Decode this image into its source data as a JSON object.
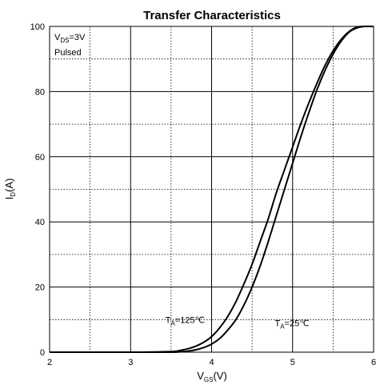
{
  "chart_data": {
    "type": "line",
    "title": "Transfer Characteristics",
    "xlabel": {
      "main": "V",
      "sub": "GS",
      "suffix": "(V)"
    },
    "ylabel": {
      "main": "I",
      "sub": "D",
      "suffix": "(A)"
    },
    "xlim": [
      2,
      6
    ],
    "ylim": [
      0,
      100
    ],
    "xticks": [
      2,
      3,
      4,
      5,
      6
    ],
    "yticks": [
      0,
      20,
      40,
      60,
      80,
      100
    ],
    "x_minor_step": 0.5,
    "y_minor_step": 10,
    "grid": true,
    "conditions": {
      "line1": {
        "main": "V",
        "sub": "DS",
        "suffix": "=3V"
      },
      "line2": "Pulsed"
    },
    "series": [
      {
        "name": {
          "main": "T",
          "sub": "A",
          "suffix": "=125℃"
        },
        "x": [
          2.0,
          3.0,
          3.5,
          3.6,
          3.7,
          3.8,
          3.9,
          4.0,
          4.1,
          4.2,
          4.3,
          4.4,
          4.5,
          4.6,
          4.7,
          4.8,
          4.9,
          5.0,
          5.1,
          5.2,
          5.3,
          5.4,
          5.5,
          5.6,
          5.7,
          5.8,
          5.9,
          6.0
        ],
        "y": [
          0,
          0,
          0.2,
          0.5,
          1.0,
          1.8,
          3.0,
          4.8,
          7.5,
          11,
          15.5,
          21,
          27,
          34,
          41,
          49,
          56,
          63,
          70,
          76.5,
          82.5,
          88,
          92.5,
          96,
          98.5,
          99.8,
          100,
          100
        ]
      },
      {
        "name": {
          "main": "T",
          "sub": "A",
          "suffix": "=25℃"
        },
        "x": [
          2.0,
          3.0,
          3.5,
          3.6,
          3.7,
          3.8,
          3.9,
          4.0,
          4.1,
          4.2,
          4.3,
          4.4,
          4.5,
          4.6,
          4.7,
          4.8,
          4.9,
          5.0,
          5.1,
          5.2,
          5.3,
          5.4,
          5.5,
          5.6,
          5.7,
          5.8,
          5.9,
          6.0
        ],
        "y": [
          0,
          0,
          0,
          0.1,
          0.3,
          0.7,
          1.4,
          2.5,
          4.2,
          6.8,
          10,
          14.5,
          20,
          26.5,
          34,
          42,
          50,
          58,
          66,
          73.5,
          80.5,
          86.5,
          91.5,
          95.5,
          98.3,
          99.6,
          100,
          100
        ]
      }
    ],
    "annotations": [
      {
        "series": 0,
        "x": 3.43,
        "y": 10
      },
      {
        "series": 1,
        "x": 4.78,
        "y": 9
      }
    ]
  }
}
